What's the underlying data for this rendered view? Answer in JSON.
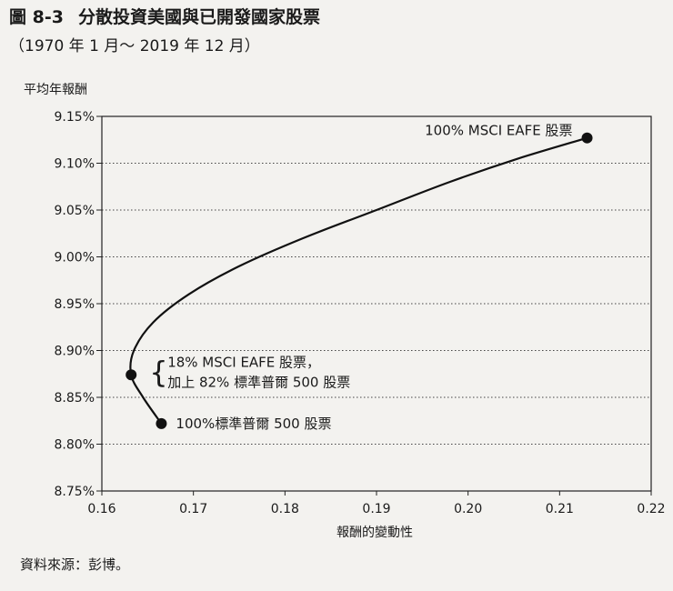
{
  "figure": {
    "number": "圖 8-3",
    "title": "分散投資美國與已開發國家股票",
    "subtitle": "（1970 年 1 月～ 2019 年 12 月）",
    "source": "資料來源：彭博。"
  },
  "chart_data": {
    "type": "line",
    "ylabel": "平均年報酬",
    "xlabel": "報酬的變動性",
    "xlim": [
      0.16,
      0.22
    ],
    "ylim": [
      8.75,
      9.15
    ],
    "x_ticks": [
      "0.16",
      "0.17",
      "0.18",
      "0.19",
      "0.20",
      "0.21",
      "0.22"
    ],
    "y_ticks": [
      "8.75%",
      "8.80%",
      "8.85%",
      "8.90%",
      "8.95%",
      "9.00%",
      "9.05%",
      "9.10%",
      "9.15%"
    ],
    "grid": "horizontal-dotted",
    "curve": {
      "x": [
        0.1665,
        0.1645,
        0.1632,
        0.1635,
        0.1656,
        0.1695,
        0.175,
        0.182,
        0.19,
        0.198,
        0.2055,
        0.213
      ],
      "y": [
        8.822,
        8.85,
        8.874,
        8.9,
        8.93,
        8.96,
        8.99,
        9.02,
        9.05,
        9.08,
        9.105,
        9.127
      ]
    },
    "points": [
      {
        "x": 0.213,
        "y": 9.127,
        "label": "100% MSCI EAFE 股票"
      },
      {
        "x": 0.1632,
        "y": 8.874,
        "label_lines": [
          "18% MSCI EAFE 股票，",
          "加上 82% 標準普爾 500 股票"
        ],
        "brace": "{"
      },
      {
        "x": 0.1665,
        "y": 8.822,
        "label": "100%標準普爾 500 股票"
      }
    ]
  }
}
